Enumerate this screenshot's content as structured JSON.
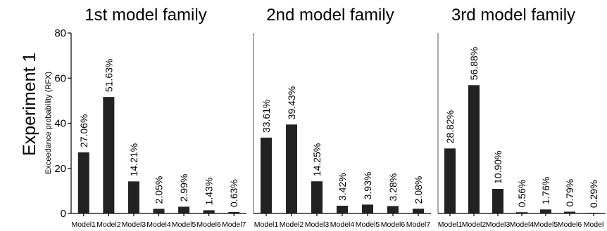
{
  "row_label": "Experiment 1",
  "ylabel": "Exceedance probability (RFX)",
  "colors": {
    "bar": "#222222",
    "axis": "#000000"
  },
  "chart_data": [
    {
      "type": "bar",
      "title": "1st model family",
      "categories": [
        "Model1",
        "Model2",
        "Model3",
        "Model4",
        "Model5",
        "Model6",
        "Model7"
      ],
      "values": [
        27.06,
        51.63,
        14.21,
        2.05,
        2.99,
        1.43,
        0.63
      ],
      "labels": [
        "27.06%",
        "51.63%",
        "14.21%",
        "2.05%",
        "2.99%",
        "1.43%",
        "0.63%"
      ],
      "yticks": [
        "0",
        "20",
        "40",
        "60",
        "80"
      ],
      "ylim": [
        0,
        80
      ],
      "ylabel": "Exceedance probability (RFX)"
    },
    {
      "type": "bar",
      "title": "2nd model family",
      "categories": [
        "Model1",
        "Model2",
        "Model3",
        "Model4",
        "Model5",
        "Model6",
        "Model7"
      ],
      "values": [
        33.61,
        39.43,
        14.25,
        3.42,
        3.93,
        3.28,
        2.08
      ],
      "labels": [
        "33.61%",
        "39.43%",
        "14.25%",
        "3.42%",
        "3.93%",
        "3.28%",
        "2.08%"
      ],
      "ylim": [
        0,
        80
      ]
    },
    {
      "type": "bar",
      "title": "3rd model family",
      "categories": [
        "Model1",
        "Model2",
        "Model3",
        "Model4",
        "Model5",
        "Model6",
        "Model"
      ],
      "values": [
        28.82,
        56.88,
        10.9,
        0.56,
        1.76,
        0.79,
        0.29
      ],
      "labels": [
        "28.82%",
        "56.88%",
        "10.90%",
        "0.56%",
        "1.76%",
        "0.79%",
        "0.29%"
      ],
      "ylim": [
        0,
        80
      ]
    }
  ]
}
